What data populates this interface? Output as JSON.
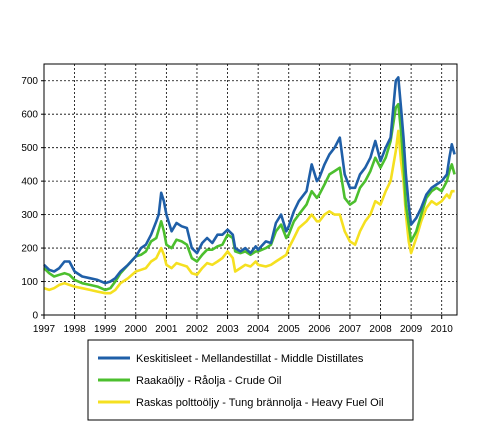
{
  "chart_data": {
    "type": "line",
    "title": "",
    "xlabel": "",
    "ylabel": "",
    "xlim": [
      1997,
      2010.5
    ],
    "ylim": [
      0,
      750
    ],
    "yticks": [
      0,
      100,
      200,
      300,
      400,
      500,
      600,
      700
    ],
    "xticks": [
      "1997",
      "1998",
      "1999",
      "2000",
      "2001",
      "2002",
      "2003",
      "2004",
      "2005",
      "2006",
      "2007",
      "2008",
      "2009",
      "2010"
    ],
    "grid": true,
    "legend": "bottom",
    "series": [
      {
        "name": "Keskitisleet - Mellandestillat - Middle Distillates",
        "color": "#1f5fa8",
        "points": [
          [
            1997.0,
            150
          ],
          [
            1997.17,
            135
          ],
          [
            1997.33,
            130
          ],
          [
            1997.5,
            140
          ],
          [
            1997.67,
            160
          ],
          [
            1997.83,
            160
          ],
          [
            1998.0,
            130
          ],
          [
            1998.25,
            115
          ],
          [
            1998.5,
            110
          ],
          [
            1998.75,
            105
          ],
          [
            1999.0,
            95
          ],
          [
            1999.17,
            100
          ],
          [
            1999.33,
            110
          ],
          [
            1999.5,
            130
          ],
          [
            1999.75,
            150
          ],
          [
            2000.0,
            175
          ],
          [
            2000.17,
            200
          ],
          [
            2000.33,
            210
          ],
          [
            2000.5,
            240
          ],
          [
            2000.67,
            280
          ],
          [
            2000.75,
            300
          ],
          [
            2000.83,
            365
          ],
          [
            2000.92,
            340
          ],
          [
            2001.0,
            300
          ],
          [
            2001.17,
            250
          ],
          [
            2001.33,
            275
          ],
          [
            2001.5,
            265
          ],
          [
            2001.67,
            260
          ],
          [
            2001.83,
            200
          ],
          [
            2002.0,
            185
          ],
          [
            2002.17,
            215
          ],
          [
            2002.33,
            230
          ],
          [
            2002.5,
            215
          ],
          [
            2002.67,
            240
          ],
          [
            2002.83,
            240
          ],
          [
            2003.0,
            255
          ],
          [
            2003.17,
            240
          ],
          [
            2003.25,
            200
          ],
          [
            2003.42,
            190
          ],
          [
            2003.58,
            200
          ],
          [
            2003.75,
            185
          ],
          [
            2003.92,
            205
          ],
          [
            2004.0,
            195
          ],
          [
            2004.25,
            220
          ],
          [
            2004.42,
            215
          ],
          [
            2004.58,
            275
          ],
          [
            2004.75,
            300
          ],
          [
            2004.92,
            250
          ],
          [
            2005.0,
            265
          ],
          [
            2005.17,
            310
          ],
          [
            2005.33,
            340
          ],
          [
            2005.58,
            370
          ],
          [
            2005.75,
            450
          ],
          [
            2005.92,
            400
          ],
          [
            2006.0,
            410
          ],
          [
            2006.17,
            450
          ],
          [
            2006.33,
            480
          ],
          [
            2006.5,
            500
          ],
          [
            2006.67,
            530
          ],
          [
            2006.83,
            420
          ],
          [
            2007.0,
            380
          ],
          [
            2007.17,
            380
          ],
          [
            2007.33,
            420
          ],
          [
            2007.5,
            440
          ],
          [
            2007.67,
            470
          ],
          [
            2007.83,
            520
          ],
          [
            2008.0,
            460
          ],
          [
            2008.17,
            500
          ],
          [
            2008.33,
            530
          ],
          [
            2008.5,
            700
          ],
          [
            2008.58,
            710
          ],
          [
            2008.67,
            620
          ],
          [
            2008.75,
            530
          ],
          [
            2008.83,
            420
          ],
          [
            2008.92,
            330
          ],
          [
            2009.0,
            270
          ],
          [
            2009.17,
            290
          ],
          [
            2009.33,
            320
          ],
          [
            2009.5,
            360
          ],
          [
            2009.67,
            380
          ],
          [
            2009.83,
            390
          ],
          [
            2010.0,
            400
          ],
          [
            2010.17,
            420
          ],
          [
            2010.25,
            470
          ],
          [
            2010.33,
            510
          ],
          [
            2010.42,
            480
          ]
        ]
      },
      {
        "name": "Raakaöljy - Råolja - Crude Oil",
        "color": "#4cbf2e",
        "points": [
          [
            1997.0,
            140
          ],
          [
            1997.17,
            125
          ],
          [
            1997.33,
            115
          ],
          [
            1997.5,
            120
          ],
          [
            1997.67,
            125
          ],
          [
            1997.83,
            120
          ],
          [
            1998.0,
            105
          ],
          [
            1998.25,
            95
          ],
          [
            1998.5,
            90
          ],
          [
            1998.75,
            85
          ],
          [
            1999.0,
            75
          ],
          [
            1999.17,
            80
          ],
          [
            1999.33,
            100
          ],
          [
            1999.5,
            125
          ],
          [
            1999.75,
            150
          ],
          [
            2000.0,
            175
          ],
          [
            2000.17,
            180
          ],
          [
            2000.33,
            190
          ],
          [
            2000.5,
            220
          ],
          [
            2000.67,
            230
          ],
          [
            2000.83,
            280
          ],
          [
            2000.92,
            250
          ],
          [
            2001.0,
            210
          ],
          [
            2001.17,
            200
          ],
          [
            2001.33,
            225
          ],
          [
            2001.5,
            220
          ],
          [
            2001.67,
            210
          ],
          [
            2001.83,
            170
          ],
          [
            2002.0,
            160
          ],
          [
            2002.17,
            180
          ],
          [
            2002.33,
            195
          ],
          [
            2002.5,
            195
          ],
          [
            2002.67,
            205
          ],
          [
            2002.83,
            210
          ],
          [
            2003.0,
            240
          ],
          [
            2003.17,
            230
          ],
          [
            2003.25,
            190
          ],
          [
            2003.42,
            185
          ],
          [
            2003.58,
            190
          ],
          [
            2003.75,
            180
          ],
          [
            2003.92,
            190
          ],
          [
            2004.0,
            190
          ],
          [
            2004.25,
            200
          ],
          [
            2004.42,
            210
          ],
          [
            2004.58,
            250
          ],
          [
            2004.75,
            270
          ],
          [
            2004.92,
            230
          ],
          [
            2005.0,
            240
          ],
          [
            2005.17,
            280
          ],
          [
            2005.33,
            300
          ],
          [
            2005.58,
            330
          ],
          [
            2005.75,
            370
          ],
          [
            2005.92,
            350
          ],
          [
            2006.0,
            360
          ],
          [
            2006.17,
            390
          ],
          [
            2006.33,
            420
          ],
          [
            2006.5,
            430
          ],
          [
            2006.67,
            440
          ],
          [
            2006.83,
            350
          ],
          [
            2007.0,
            330
          ],
          [
            2007.17,
            340
          ],
          [
            2007.33,
            380
          ],
          [
            2007.5,
            400
          ],
          [
            2007.67,
            430
          ],
          [
            2007.83,
            470
          ],
          [
            2008.0,
            440
          ],
          [
            2008.17,
            470
          ],
          [
            2008.33,
            520
          ],
          [
            2008.5,
            620
          ],
          [
            2008.58,
            630
          ],
          [
            2008.67,
            550
          ],
          [
            2008.75,
            450
          ],
          [
            2008.83,
            330
          ],
          [
            2008.92,
            270
          ],
          [
            2009.0,
            220
          ],
          [
            2009.17,
            250
          ],
          [
            2009.33,
            300
          ],
          [
            2009.5,
            350
          ],
          [
            2009.67,
            370
          ],
          [
            2009.83,
            380
          ],
          [
            2010.0,
            370
          ],
          [
            2010.17,
            400
          ],
          [
            2010.25,
            430
          ],
          [
            2010.33,
            450
          ],
          [
            2010.42,
            420
          ]
        ]
      },
      {
        "name": "Raskas polttoöljy - Tung brännolja - Heavy Fuel Oil",
        "color": "#f5e020",
        "points": [
          [
            1997.0,
            80
          ],
          [
            1997.17,
            75
          ],
          [
            1997.33,
            80
          ],
          [
            1997.5,
            90
          ],
          [
            1997.67,
            95
          ],
          [
            1997.83,
            90
          ],
          [
            1998.0,
            85
          ],
          [
            1998.25,
            80
          ],
          [
            1998.5,
            75
          ],
          [
            1998.75,
            70
          ],
          [
            1999.0,
            65
          ],
          [
            1999.17,
            65
          ],
          [
            1999.33,
            75
          ],
          [
            1999.5,
            95
          ],
          [
            1999.75,
            110
          ],
          [
            2000.0,
            130
          ],
          [
            2000.17,
            135
          ],
          [
            2000.33,
            140
          ],
          [
            2000.5,
            160
          ],
          [
            2000.67,
            170
          ],
          [
            2000.83,
            200
          ],
          [
            2000.92,
            180
          ],
          [
            2001.0,
            150
          ],
          [
            2001.17,
            140
          ],
          [
            2001.33,
            155
          ],
          [
            2001.5,
            150
          ],
          [
            2001.67,
            145
          ],
          [
            2001.83,
            125
          ],
          [
            2002.0,
            120
          ],
          [
            2002.17,
            140
          ],
          [
            2002.33,
            155
          ],
          [
            2002.5,
            150
          ],
          [
            2002.67,
            160
          ],
          [
            2002.83,
            170
          ],
          [
            2003.0,
            190
          ],
          [
            2003.17,
            170
          ],
          [
            2003.25,
            130
          ],
          [
            2003.42,
            140
          ],
          [
            2003.58,
            150
          ],
          [
            2003.75,
            145
          ],
          [
            2003.92,
            160
          ],
          [
            2004.0,
            150
          ],
          [
            2004.25,
            145
          ],
          [
            2004.42,
            150
          ],
          [
            2004.58,
            160
          ],
          [
            2004.75,
            170
          ],
          [
            2004.92,
            180
          ],
          [
            2005.0,
            200
          ],
          [
            2005.17,
            230
          ],
          [
            2005.33,
            260
          ],
          [
            2005.58,
            280
          ],
          [
            2005.75,
            300
          ],
          [
            2005.92,
            280
          ],
          [
            2006.0,
            280
          ],
          [
            2006.17,
            300
          ],
          [
            2006.33,
            310
          ],
          [
            2006.5,
            300
          ],
          [
            2006.67,
            300
          ],
          [
            2006.83,
            250
          ],
          [
            2007.0,
            220
          ],
          [
            2007.17,
            210
          ],
          [
            2007.33,
            250
          ],
          [
            2007.5,
            280
          ],
          [
            2007.67,
            300
          ],
          [
            2007.83,
            340
          ],
          [
            2008.0,
            330
          ],
          [
            2008.17,
            370
          ],
          [
            2008.33,
            400
          ],
          [
            2008.5,
            490
          ],
          [
            2008.58,
            550
          ],
          [
            2008.67,
            460
          ],
          [
            2008.75,
            400
          ],
          [
            2008.83,
            300
          ],
          [
            2008.92,
            220
          ],
          [
            2009.0,
            185
          ],
          [
            2009.17,
            230
          ],
          [
            2009.33,
            280
          ],
          [
            2009.5,
            320
          ],
          [
            2009.67,
            340
          ],
          [
            2009.83,
            330
          ],
          [
            2010.0,
            340
          ],
          [
            2010.17,
            360
          ],
          [
            2010.25,
            350
          ],
          [
            2010.33,
            370
          ],
          [
            2010.42,
            370
          ]
        ]
      }
    ]
  }
}
